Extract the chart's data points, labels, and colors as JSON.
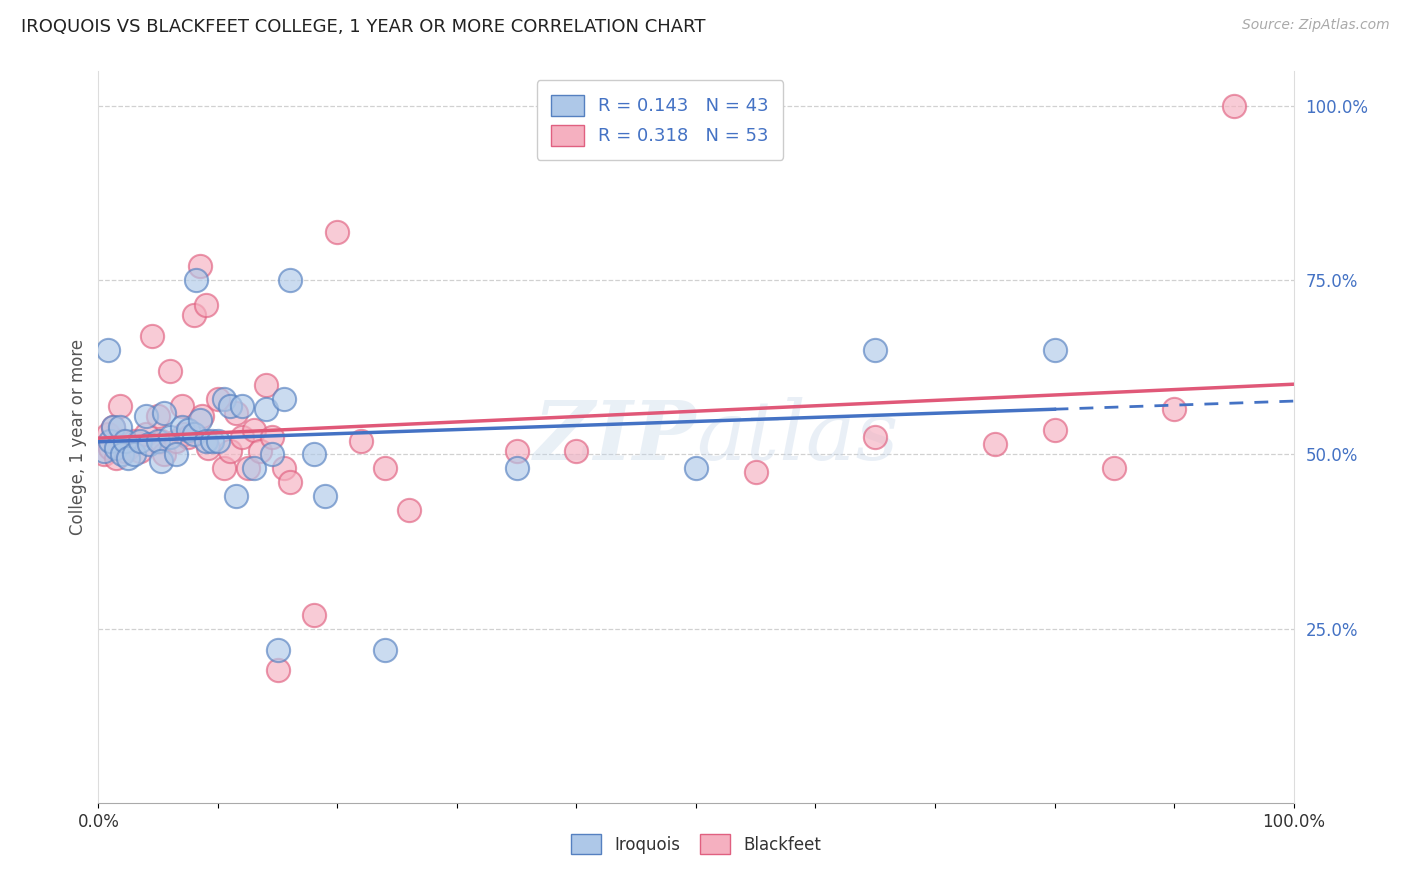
{
  "title": "IROQUOIS VS BLACKFEET COLLEGE, 1 YEAR OR MORE CORRELATION CHART",
  "source": "Source: ZipAtlas.com",
  "ylabel": "College, 1 year or more",
  "watermark": "ZIPAtlas",
  "legend_iroquois_R": 0.143,
  "legend_iroquois_N": 43,
  "legend_blackfeet_R": 0.318,
  "legend_blackfeet_N": 53,
  "iroquois_fill": "#aec8e8",
  "blackfeet_fill": "#f5b0c0",
  "iroquois_edge": "#5580c0",
  "blackfeet_edge": "#e06080",
  "iroquois_line": "#4472c4",
  "blackfeet_line": "#e05878",
  "right_axis_color": "#4472c4",
  "iroquois_x": [
    0.005,
    0.008,
    0.01,
    0.012,
    0.015,
    0.018,
    0.02,
    0.022,
    0.025,
    0.03,
    0.035,
    0.04,
    0.042,
    0.05,
    0.052,
    0.055,
    0.06,
    0.065,
    0.07,
    0.075,
    0.08,
    0.082,
    0.085,
    0.09,
    0.095,
    0.1,
    0.105,
    0.11,
    0.115,
    0.12,
    0.13,
    0.14,
    0.145,
    0.15,
    0.155,
    0.16,
    0.18,
    0.19,
    0.24,
    0.35,
    0.5,
    0.65,
    0.8
  ],
  "iroquois_y": [
    0.505,
    0.65,
    0.52,
    0.54,
    0.51,
    0.54,
    0.5,
    0.52,
    0.495,
    0.5,
    0.52,
    0.555,
    0.515,
    0.52,
    0.49,
    0.56,
    0.525,
    0.5,
    0.54,
    0.535,
    0.53,
    0.75,
    0.55,
    0.52,
    0.52,
    0.52,
    0.58,
    0.57,
    0.44,
    0.57,
    0.48,
    0.565,
    0.5,
    0.22,
    0.58,
    0.75,
    0.5,
    0.44,
    0.22,
    0.48,
    0.48,
    0.65,
    0.65
  ],
  "blackfeet_x": [
    0.005,
    0.008,
    0.01,
    0.012,
    0.015,
    0.018,
    0.02,
    0.022,
    0.025,
    0.03,
    0.035,
    0.04,
    0.045,
    0.05,
    0.052,
    0.055,
    0.06,
    0.065,
    0.07,
    0.072,
    0.075,
    0.08,
    0.085,
    0.087,
    0.09,
    0.092,
    0.1,
    0.105,
    0.11,
    0.115,
    0.12,
    0.125,
    0.13,
    0.135,
    0.14,
    0.145,
    0.15,
    0.155,
    0.16,
    0.18,
    0.2,
    0.22,
    0.24,
    0.26,
    0.35,
    0.4,
    0.55,
    0.65,
    0.75,
    0.8,
    0.85,
    0.9,
    0.95
  ],
  "blackfeet_y": [
    0.5,
    0.53,
    0.51,
    0.54,
    0.495,
    0.57,
    0.52,
    0.505,
    0.51,
    0.52,
    0.505,
    0.53,
    0.67,
    0.555,
    0.52,
    0.5,
    0.62,
    0.52,
    0.57,
    0.53,
    0.525,
    0.7,
    0.77,
    0.555,
    0.715,
    0.51,
    0.58,
    0.48,
    0.505,
    0.56,
    0.525,
    0.48,
    0.535,
    0.505,
    0.6,
    0.525,
    0.19,
    0.48,
    0.46,
    0.27,
    0.82,
    0.52,
    0.48,
    0.42,
    0.505,
    0.505,
    0.475,
    0.525,
    0.515,
    0.535,
    0.48,
    0.565,
    1.0
  ],
  "xlim": [
    0.0,
    1.0
  ],
  "ylim": [
    0.0,
    1.05
  ],
  "background_color": "#ffffff",
  "grid_color": "#cccccc"
}
